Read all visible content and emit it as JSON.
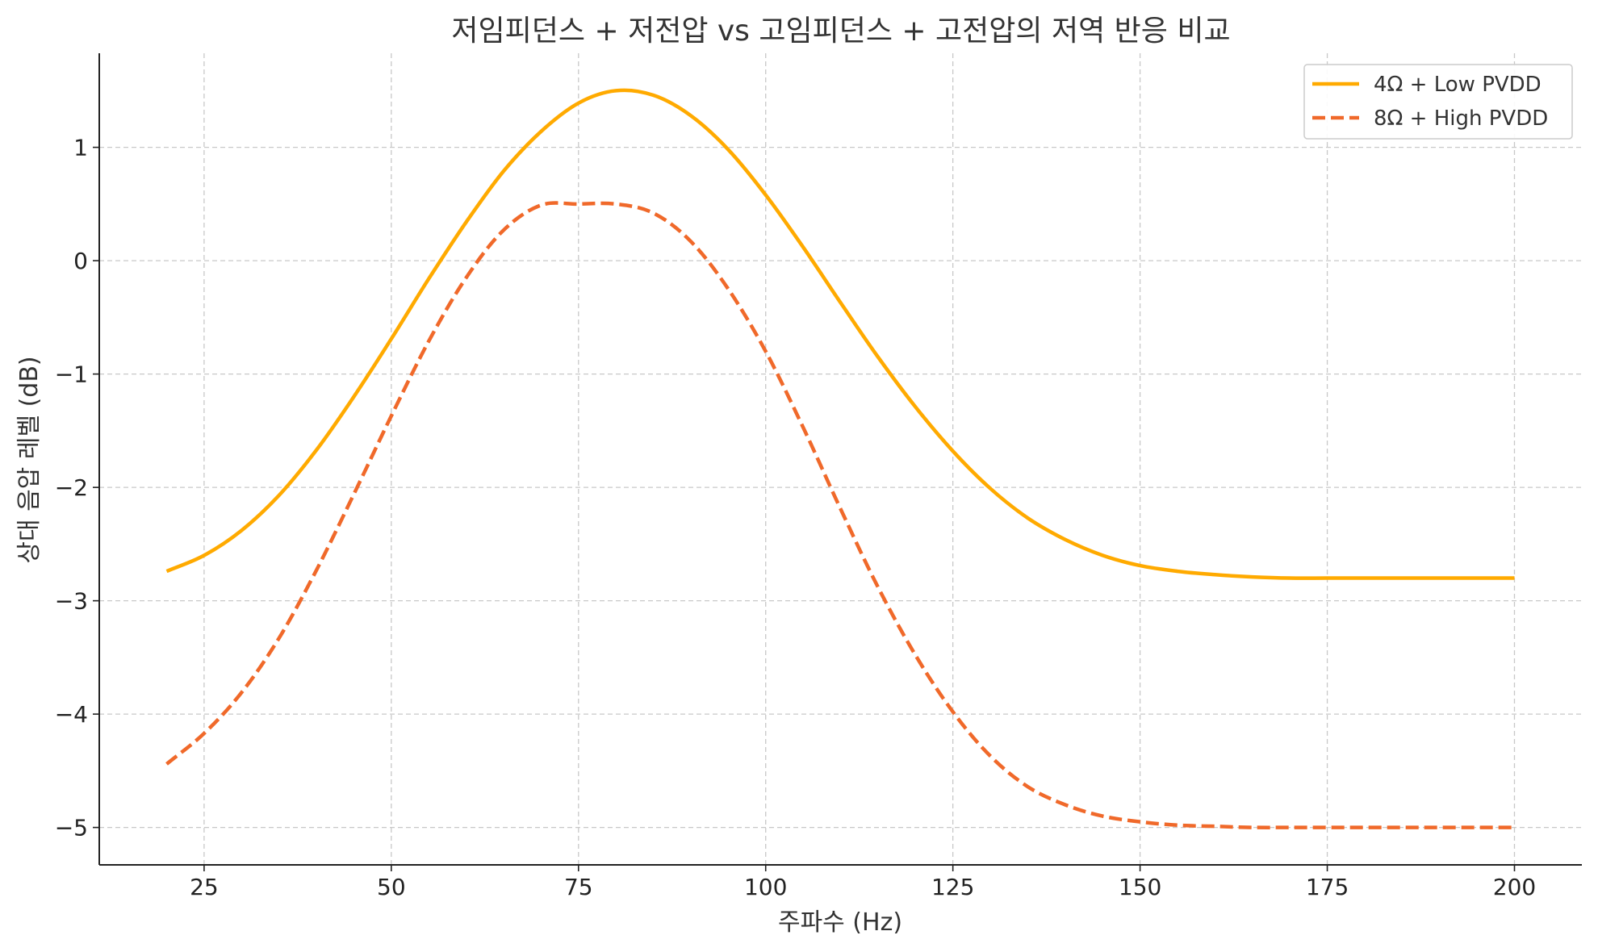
{
  "chart_data": {
    "type": "line",
    "title": "저임피던스 + 저전압 vs 고임피던스 + 고전압의 저역 반응 비교",
    "xlabel": "주파수 (Hz)",
    "ylabel": "상대 음압 레벨 (dB)",
    "xlim": [
      11,
      209
    ],
    "ylim": [
      -5.33,
      1.83
    ],
    "xticks": [
      25,
      50,
      75,
      100,
      125,
      150,
      175,
      200
    ],
    "yticks": [
      1,
      0,
      -1,
      -2,
      -3,
      -4,
      -5
    ],
    "ytick_labels": [
      "1",
      "0",
      "−1",
      "−2",
      "−3",
      "−4",
      "−5"
    ],
    "grid": true,
    "legend_position": "top-right",
    "series": [
      {
        "name": "4Ω + Low PVDD",
        "color": "#FFAA00",
        "style": "solid",
        "x": [
          20,
          25,
          30,
          35,
          40,
          45,
          50,
          55,
          60,
          65,
          70,
          75,
          80,
          85,
          90,
          95,
          100,
          105,
          110,
          115,
          120,
          125,
          130,
          135,
          140,
          145,
          150,
          155,
          160,
          165,
          170,
          175,
          180,
          185,
          190,
          195,
          200
        ],
        "y": [
          -2.74,
          -2.6,
          -2.38,
          -2.07,
          -1.67,
          -1.2,
          -0.69,
          -0.16,
          0.34,
          0.79,
          1.14,
          1.39,
          1.5,
          1.46,
          1.28,
          0.98,
          0.58,
          0.12,
          -0.37,
          -0.85,
          -1.29,
          -1.68,
          -2.01,
          -2.27,
          -2.46,
          -2.6,
          -2.69,
          -2.74,
          -2.77,
          -2.79,
          -2.8,
          -2.8,
          -2.8,
          -2.8,
          -2.8,
          -2.8,
          -2.8
        ]
      },
      {
        "name": "8Ω + High PVDD",
        "color": "#F0692A",
        "style": "dashed",
        "x": [
          20,
          25,
          30,
          35,
          40,
          45,
          50,
          55,
          60,
          65,
          70,
          75,
          80,
          85,
          90,
          95,
          100,
          105,
          110,
          115,
          120,
          125,
          130,
          135,
          140,
          145,
          150,
          155,
          160,
          165,
          170,
          175,
          180,
          185,
          190,
          195,
          200
        ],
        "y": [
          -4.44,
          -4.17,
          -3.81,
          -3.33,
          -2.73,
          -2.06,
          -1.37,
          -0.71,
          -0.15,
          0.27,
          0.49,
          0.5,
          0.5,
          0.42,
          0.17,
          -0.25,
          -0.8,
          -1.47,
          -2.19,
          -2.88,
          -3.48,
          -3.98,
          -4.37,
          -4.64,
          -4.8,
          -4.9,
          -4.95,
          -4.98,
          -4.99,
          -5.0,
          -5.0,
          -5.0,
          -5.0,
          -5.0,
          -5.0,
          -5.0,
          -5.0
        ]
      }
    ]
  }
}
